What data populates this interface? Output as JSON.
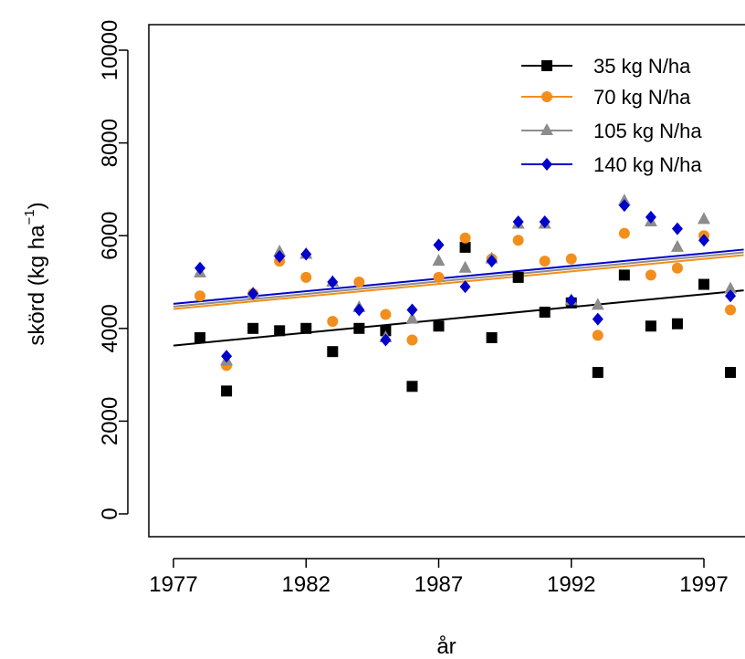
{
  "chart_data": {
    "type": "scatter",
    "xlabel": "år",
    "ylabel_main": "skörd (kg ha",
    "ylabel_sup": "−1",
    "ylabel_close": ")",
    "xlim": [
      1977,
      1998.5
    ],
    "ylim": [
      0,
      10000
    ],
    "x_ticks": [
      1977,
      1982,
      1987,
      1992,
      1997
    ],
    "y_ticks": [
      0,
      2000,
      4000,
      6000,
      8000,
      10000
    ],
    "legend_position": "top-right",
    "series": [
      {
        "name": "35 kg N/ha",
        "color": "#000000",
        "marker": "square",
        "x": [
          1978,
          1979,
          1980,
          1981,
          1982,
          1983,
          1984,
          1985,
          1986,
          1987,
          1988,
          1989,
          1990,
          1991,
          1992,
          1993,
          1994,
          1995,
          1996,
          1997,
          1998
        ],
        "y": [
          3800,
          2650,
          4000,
          3950,
          4000,
          3500,
          4000,
          3950,
          2750,
          4050,
          5750,
          3800,
          5100,
          4350,
          4550,
          3050,
          5150,
          4050,
          4100,
          4950,
          3050
        ],
        "trend": [
          3630,
          4820
        ]
      },
      {
        "name": "70 kg N/ha",
        "color": "#f28e1c",
        "marker": "circle",
        "x": [
          1978,
          1979,
          1980,
          1981,
          1982,
          1983,
          1984,
          1985,
          1986,
          1987,
          1988,
          1989,
          1990,
          1991,
          1992,
          1993,
          1994,
          1995,
          1996,
          1997,
          1998
        ],
        "y": [
          4700,
          3200,
          4750,
          5450,
          5100,
          4150,
          5000,
          4300,
          3750,
          5100,
          5950,
          5500,
          5900,
          5450,
          5500,
          3850,
          6050,
          5150,
          5300,
          6000,
          4400
        ],
        "trend": [
          4420,
          5580
        ]
      },
      {
        "name": "105 kg N/ha",
        "color": "#8c8c8c",
        "marker": "triangle",
        "x": [
          1978,
          1979,
          1980,
          1981,
          1982,
          1983,
          1984,
          1985,
          1986,
          1987,
          1988,
          1989,
          1990,
          1991,
          1992,
          1993,
          1994,
          1995,
          1996,
          1997,
          1998
        ],
        "y": [
          5200,
          3300,
          4750,
          5650,
          5600,
          5000,
          4450,
          3800,
          4200,
          5450,
          5300,
          5500,
          6250,
          6250,
          4600,
          4500,
          6750,
          6300,
          5750,
          6350,
          4850
        ],
        "trend": [
          4470,
          5640
        ]
      },
      {
        "name": "140 kg N/ha",
        "color": "#0000cc",
        "marker": "diamond",
        "x": [
          1978,
          1979,
          1980,
          1981,
          1982,
          1983,
          1984,
          1985,
          1986,
          1987,
          1988,
          1989,
          1990,
          1991,
          1992,
          1993,
          1994,
          1995,
          1996,
          1997,
          1998
        ],
        "y": [
          5300,
          3400,
          4750,
          5550,
          5600,
          5000,
          4400,
          3750,
          4400,
          5800,
          4900,
          5450,
          6300,
          6300,
          4600,
          4200,
          6650,
          6400,
          6150,
          5900,
          4700
        ],
        "trend": [
          4530,
          5700
        ]
      }
    ]
  }
}
